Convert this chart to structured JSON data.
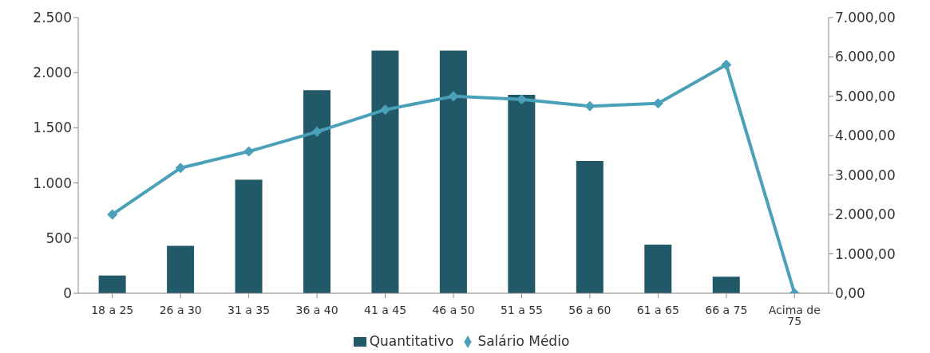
{
  "chart_data": {
    "type": "bar",
    "categories": [
      "18 a 25",
      "26 a 30",
      "31 a 35",
      "36 a 40",
      "41 a 45",
      "46 a 50",
      "51 a 55",
      "56 a 60",
      "61 a 65",
      "66 a 75",
      "Acima de 75"
    ],
    "series": [
      {
        "name": "Quantitativo",
        "color": "#215968",
        "values": [
          160,
          430,
          1030,
          1840,
          2200,
          2200,
          1800,
          1200,
          440,
          150,
          0
        ]
      },
      {
        "name": "Salário Médio",
        "type": "line",
        "axis": "y2",
        "color": "#4aa0b8",
        "marker": "diamond",
        "values": [
          2000,
          3180,
          3600,
          4100,
          4660,
          5000,
          4920,
          4750,
          4820,
          5800,
          0
        ]
      }
    ],
    "ylim": [
      0,
      2500
    ],
    "yticks": [
      0,
      500,
      {
        "value": 1000,
        "label": "1.000"
      },
      {
        "value": 1500,
        "label": "1.500"
      },
      {
        "value": 2000,
        "label": "2.000"
      },
      {
        "value": 2500,
        "label": "2.500"
      }
    ],
    "y2lim": [
      0,
      7000
    ],
    "y2ticks": [
      {
        "value": 0,
        "label": "0,00"
      },
      {
        "value": 1000,
        "label": "1.000,00"
      },
      {
        "value": 2000,
        "label": "2.000,00"
      },
      {
        "value": 3000,
        "label": "3.000,00"
      },
      {
        "value": 4000,
        "label": "4.000,00"
      },
      {
        "value": 5000,
        "label": "5.000,00"
      },
      {
        "value": 6000,
        "label": "6.000,00"
      },
      {
        "value": 7000,
        "label": "7.000,00"
      }
    ],
    "grid": false,
    "legend": "bottom"
  }
}
